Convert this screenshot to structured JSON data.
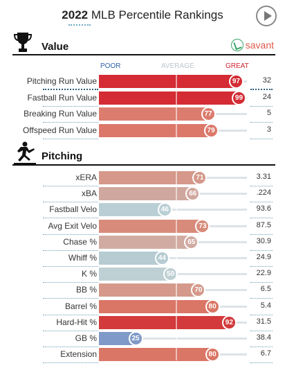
{
  "header": {
    "year": "2022",
    "title": "MLB Percentile Rankings"
  },
  "value_section": {
    "title": "Value",
    "brand": "savant",
    "scale": {
      "poor": "POOR",
      "average": "AVERAGE",
      "great": "GREAT"
    },
    "rows": [
      {
        "label": "Pitching Run Value",
        "percentile": 97,
        "stat": "32",
        "color": "#d42b34",
        "highlight": true
      },
      {
        "label": "Fastball Run Value",
        "percentile": 99,
        "stat": "24",
        "color": "#d42b34",
        "highlight": false
      },
      {
        "label": "Breaking Run Value",
        "percentile": 77,
        "stat": "5",
        "color": "#dc7c6e",
        "highlight": false
      },
      {
        "label": "Offspeed Run Value",
        "percentile": 79,
        "stat": "3",
        "color": "#dc786a",
        "highlight": false
      }
    ]
  },
  "pitching_section": {
    "title": "Pitching",
    "rows": [
      {
        "label": "xERA",
        "percentile": 71,
        "stat": "3.31",
        "color": "#d5988a"
      },
      {
        "label": "xBA",
        "percentile": 66,
        "stat": ".224",
        "color": "#d0a79e"
      },
      {
        "label": "Fastball Velo",
        "percentile": 46,
        "stat": "93.6",
        "color": "#b9cfd5"
      },
      {
        "label": "Avg Exit Velo",
        "percentile": 73,
        "stat": "87.5",
        "color": "#d88b7b"
      },
      {
        "label": "Chase %",
        "percentile": 65,
        "stat": "30.9",
        "color": "#d1aba2"
      },
      {
        "label": "Whiff %",
        "percentile": 44,
        "stat": "24.9",
        "color": "#b6cbd2"
      },
      {
        "label": "K %",
        "percentile": 50,
        "stat": "22.9",
        "color": "#bfd0d4"
      },
      {
        "label": "BB %",
        "percentile": 70,
        "stat": "6.5",
        "color": "#d5998b"
      },
      {
        "label": "Barrel %",
        "percentile": 80,
        "stat": "5.4",
        "color": "#da7666"
      },
      {
        "label": "Hard-Hit %",
        "percentile": 92,
        "stat": "31.5",
        "color": "#d23a3b"
      },
      {
        "label": "GB %",
        "percentile": 25,
        "stat": "38.4",
        "color": "#7f9ac8"
      },
      {
        "label": "Extension",
        "percentile": 80,
        "stat": "6.7",
        "color": "#da7666"
      }
    ]
  }
}
